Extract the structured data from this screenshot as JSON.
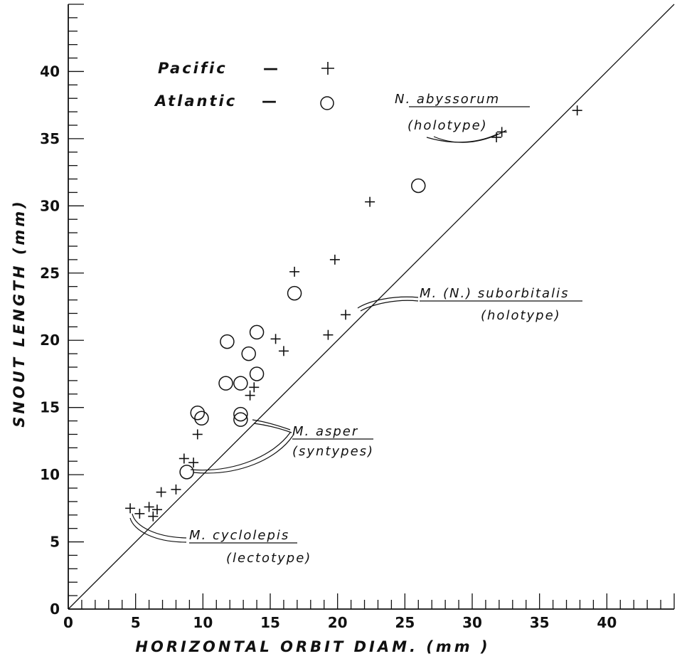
{
  "chart_data": {
    "type": "scatter",
    "xlabel": "HORIZONTAL ORBIT DIAM. (mm )",
    "ylabel": "SNOUT LENGTH (mm)",
    "xlim": [
      0,
      45
    ],
    "ylim": [
      0,
      45
    ],
    "x_ticks": [
      "0",
      "5",
      "10",
      "15",
      "20",
      "25",
      "30",
      "35",
      "40"
    ],
    "y_ticks": [
      "0",
      "5",
      "10",
      "15",
      "20",
      "25",
      "30",
      "35",
      "40"
    ],
    "reference_line": "y = x",
    "legend": {
      "placement": "top-left",
      "entries": [
        {
          "label": "Pacific",
          "dash": "—",
          "marker": "+"
        },
        {
          "label": "Atlantic",
          "dash": "—",
          "marker": "circle"
        }
      ]
    },
    "series": [
      {
        "name": "Pacific",
        "marker": "plus",
        "points": [
          [
            4.6,
            7.5
          ],
          [
            5.3,
            7.1
          ],
          [
            6.0,
            7.6
          ],
          [
            6.3,
            6.9
          ],
          [
            6.6,
            7.4
          ],
          [
            6.9,
            8.7
          ],
          [
            8.0,
            8.9
          ],
          [
            8.6,
            11.2
          ],
          [
            9.3,
            10.9
          ],
          [
            9.6,
            13.0
          ],
          [
            13.5,
            15.9
          ],
          [
            13.8,
            16.5
          ],
          [
            15.4,
            20.1
          ],
          [
            16.0,
            19.2
          ],
          [
            16.8,
            25.1
          ],
          [
            19.3,
            20.4
          ],
          [
            19.8,
            26.0
          ],
          [
            20.6,
            21.9
          ],
          [
            22.4,
            30.3
          ],
          [
            31.8,
            35.1
          ],
          [
            32.2,
            35.5
          ],
          [
            37.8,
            37.1
          ]
        ]
      },
      {
        "name": "Atlantic",
        "marker": "circle",
        "points": [
          [
            8.8,
            10.2
          ],
          [
            9.6,
            14.6
          ],
          [
            9.9,
            14.2
          ],
          [
            11.7,
            16.8
          ],
          [
            11.8,
            19.9
          ],
          [
            12.8,
            16.8
          ],
          [
            12.8,
            14.5
          ],
          [
            12.8,
            14.1
          ],
          [
            13.4,
            19.0
          ],
          [
            14.0,
            20.6
          ],
          [
            14.0,
            17.5
          ],
          [
            16.8,
            23.5
          ],
          [
            26.0,
            31.5
          ]
        ]
      }
    ],
    "annotations": [
      {
        "lines": [
          "N. abyssorum",
          "(holotype)"
        ],
        "underlined": "abyssorum"
      },
      {
        "lines": [
          "M. (N.) suborbitalis",
          "(holotype)"
        ],
        "underlined": "M. N. suborbitalis"
      },
      {
        "lines": [
          "M. asper",
          "(syntypes)"
        ],
        "underlined": "M. asper"
      },
      {
        "lines": [
          "M. cyclolepis",
          "(lectotype)"
        ],
        "underlined": "M. cyclolepis"
      }
    ]
  }
}
